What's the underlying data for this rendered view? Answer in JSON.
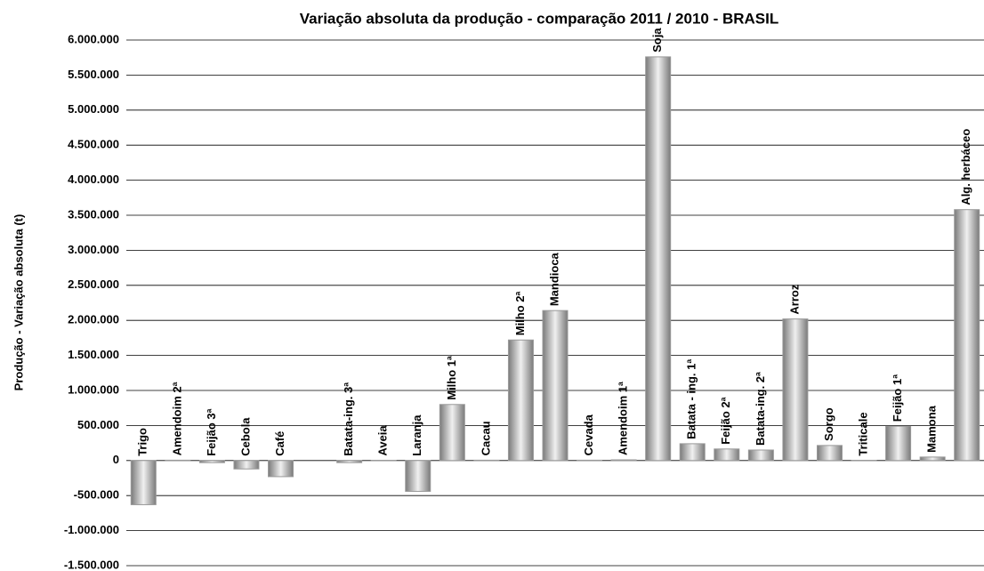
{
  "chart_data": {
    "type": "bar",
    "title": "Variação absoluta da produção - comparação 2011 / 2010 - BRASIL",
    "y_label": "Produção - Variação absoluta (t)",
    "categories": [
      "Trigo",
      "Amendoim 2ª",
      "Feijão 3ª",
      "Cebola",
      "Café",
      null,
      "Batata-ing. 3ª",
      "Aveia",
      "Laranja",
      "Milho 1ª",
      "Cacau",
      "Milho 2ª",
      "Mandioca",
      "Cevada",
      "Amendoim 1ª",
      "Soja",
      "Batata - ing. 1ª",
      "Feijão 2ª",
      "Batata-ing. 2ª",
      "Arroz",
      "Sorgo",
      "Triticale",
      "Feijão 1ª",
      "Mamona",
      "Alg. herbáceo"
    ],
    "values": [
      -630000,
      5000,
      -30000,
      -120000,
      -230000,
      null,
      -30000,
      3000,
      -440000,
      800000,
      5000,
      1720000,
      2140000,
      5000,
      10000,
      5760000,
      240000,
      165000,
      150000,
      2020000,
      215000,
      3000,
      490000,
      50000,
      3580000
    ],
    "color": "#999999",
    "ylim": [
      -1500000,
      6000000
    ],
    "yticks": [
      {
        "value": -1500000,
        "label": "-1.500.000"
      },
      {
        "value": -1000000,
        "label": "-1.000.000"
      },
      {
        "value": -500000,
        "label": "-500.000"
      },
      0,
      {
        "value": 500000,
        "label": "500.000"
      },
      {
        "value": 1000000,
        "label": "1.000.000"
      },
      {
        "value": 1500000,
        "label": "1.500.000"
      },
      {
        "value": 2000000,
        "label": "2.000.000"
      },
      {
        "value": 2500000,
        "label": "2.500.000"
      },
      {
        "value": 3000000,
        "label": "3.000.000"
      },
      {
        "value": 3500000,
        "label": "3.500.000"
      },
      {
        "value": 4000000,
        "label": "4.000.000"
      },
      {
        "value": 4500000,
        "label": "4.500.000"
      },
      {
        "value": 5000000,
        "label": "5.000.000"
      },
      {
        "value": 5500000,
        "label": "5.500.000"
      },
      {
        "value": 6000000,
        "label": "6.000.000"
      }
    ],
    "grid": true
  }
}
